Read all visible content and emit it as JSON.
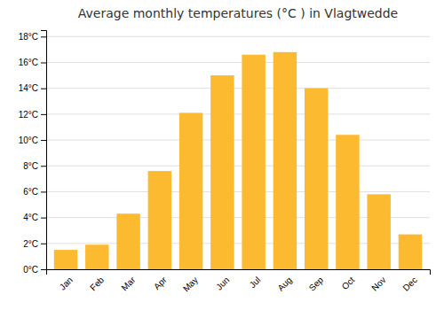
{
  "chart_data": {
    "type": "bar",
    "title": "Average monthly temperatures (°C ) in Vlagtwedde",
    "categories": [
      "Jan",
      "Feb",
      "Mar",
      "Apr",
      "May",
      "Jun",
      "Jul",
      "Aug",
      "Sep",
      "Oct",
      "Nov",
      "Dec"
    ],
    "values": [
      1.5,
      1.9,
      4.3,
      7.6,
      12.1,
      15.0,
      16.6,
      16.8,
      14.0,
      10.4,
      5.8,
      2.7
    ],
    "color": "#FCBA30",
    "ylim": [
      0,
      18.5
    ],
    "yticks": [
      {
        "value": 0,
        "label": "0°C"
      },
      {
        "value": 2,
        "label": "2°C"
      },
      {
        "value": 4,
        "label": "4°C"
      },
      {
        "value": 6,
        "label": "6°C"
      },
      {
        "value": 8,
        "label": "8°C"
      },
      {
        "value": 10,
        "label": "10°C"
      },
      {
        "value": 12,
        "label": "12°C"
      },
      {
        "value": 14,
        "label": "14°C"
      },
      {
        "value": 16,
        "label": "16°C"
      },
      {
        "value": 18,
        "label": "18°C"
      }
    ],
    "grid": true
  }
}
